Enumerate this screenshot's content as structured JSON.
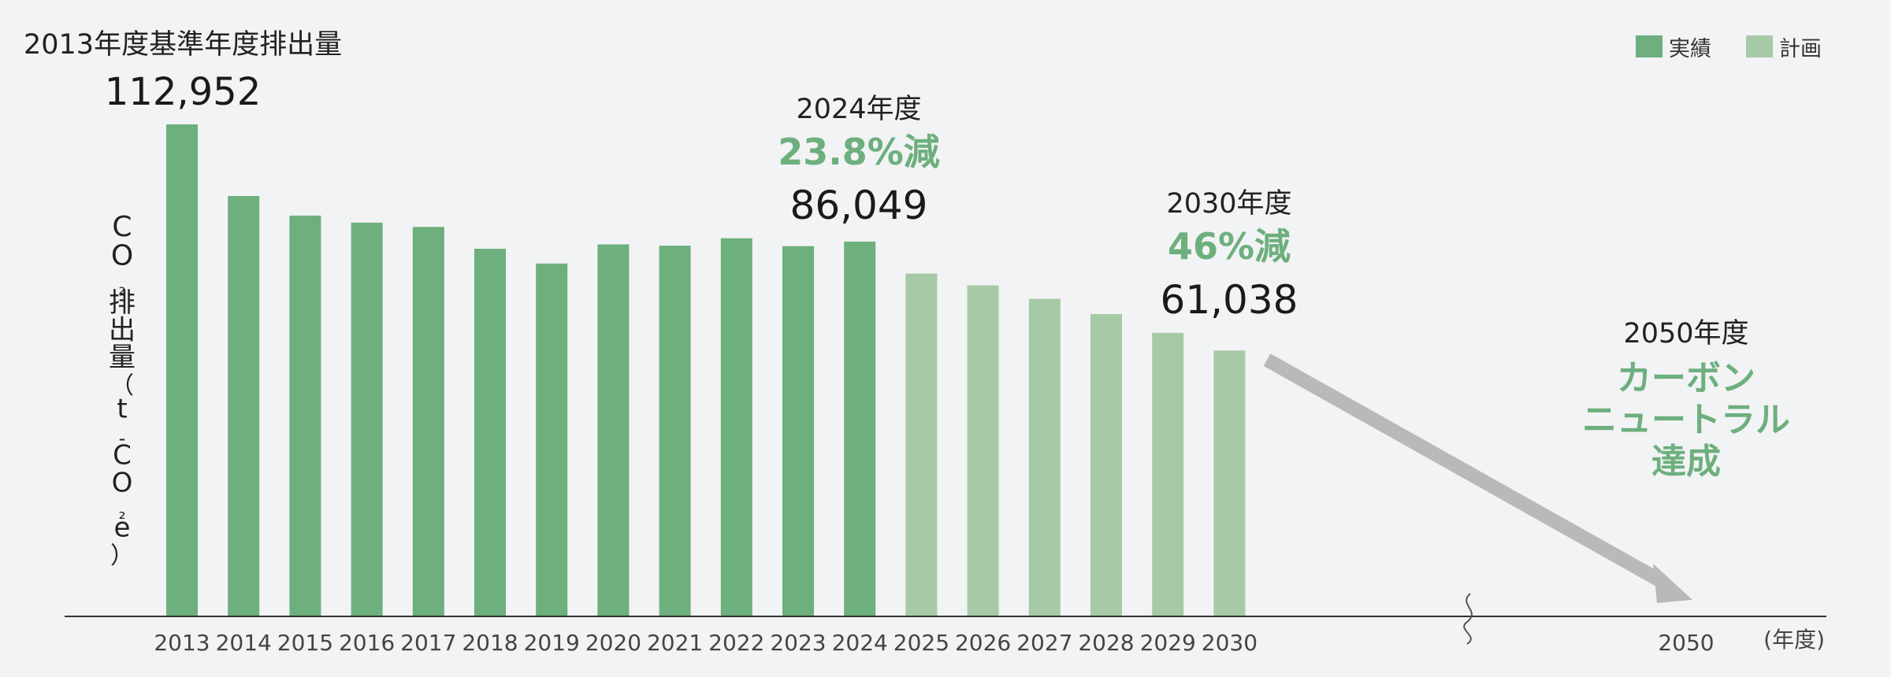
{
  "chart_data": {
    "type": "bar",
    "title": "2013年度基準年度排出量",
    "ylabel_chars": [
      "C",
      "O",
      "₂",
      "排",
      "出",
      "量",
      "（",
      "t",
      "-",
      "C",
      "O",
      "₂",
      "e",
      "）"
    ],
    "x_unit": "(年度)",
    "ylim": [
      0,
      120000
    ],
    "legend": {
      "position": "top-right",
      "items": [
        {
          "label": "実績",
          "color": "#6daf7d"
        },
        {
          "label": "計画",
          "color": "#a6caa6"
        }
      ]
    },
    "series": [
      {
        "name": "実績",
        "color": "#6daf7d",
        "categories": [
          "2013",
          "2014",
          "2015",
          "2016",
          "2017",
          "2018",
          "2019",
          "2020",
          "2021",
          "2022",
          "2023",
          "2024"
        ],
        "values": [
          112952,
          96500,
          92000,
          90400,
          89400,
          84400,
          81000,
          85400,
          85100,
          86800,
          85000,
          86049
        ]
      },
      {
        "name": "計画",
        "color": "#a6caa6",
        "categories": [
          "2025",
          "2026",
          "2027",
          "2028",
          "2029",
          "2030"
        ],
        "values": [
          78700,
          76000,
          72900,
          69400,
          65100,
          61038
        ]
      }
    ],
    "future_category": "2050",
    "annotations": {
      "base": {
        "value_label": "112,952"
      },
      "y2024": {
        "year_label": "2024年度",
        "reduction": "23.8%減",
        "value_label": "86,049"
      },
      "y2030": {
        "year_label": "2030年度",
        "reduction": "46%減",
        "value_label": "61,038"
      },
      "y2050": {
        "year_label": "2050年度",
        "goal_lines": [
          "カーボン",
          "ニュートラル",
          "達成"
        ]
      }
    },
    "colors": {
      "accent_text": "#6daf7d",
      "arrow": "#b9b9b9",
      "axis": "#333333"
    }
  }
}
